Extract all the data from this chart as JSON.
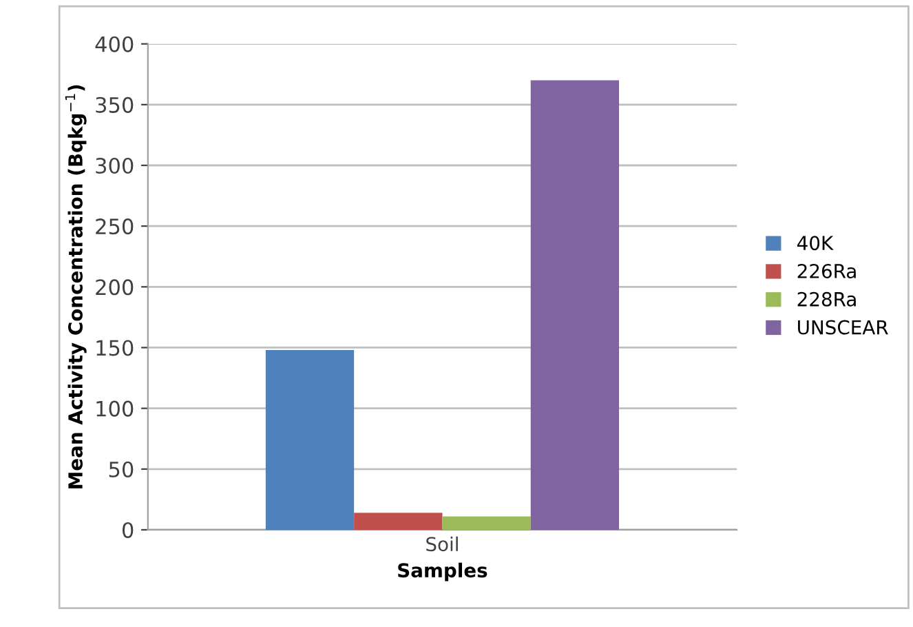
{
  "chart_data": {
    "type": "bar",
    "xlabel": "Samples",
    "ylabel": "Mean Activity Concentration (Bqkg$^{−1}$)",
    "categories": [
      "Soil"
    ],
    "series": [
      {
        "name": "40K",
        "color": "#4f81bd",
        "values": [
          148
        ]
      },
      {
        "name": "226Ra",
        "color": "#c0504d",
        "values": [
          14
        ]
      },
      {
        "name": "228Ra",
        "color": "#9bbb59",
        "values": [
          11
        ]
      },
      {
        "name": "UNSCEAR",
        "color": "#8064a2",
        "values": [
          370
        ]
      }
    ],
    "ylim": [
      0,
      400
    ],
    "yticks": [
      0,
      50,
      100,
      150,
      200,
      250,
      300,
      350,
      400
    ],
    "grid": "y",
    "legend": "right"
  }
}
